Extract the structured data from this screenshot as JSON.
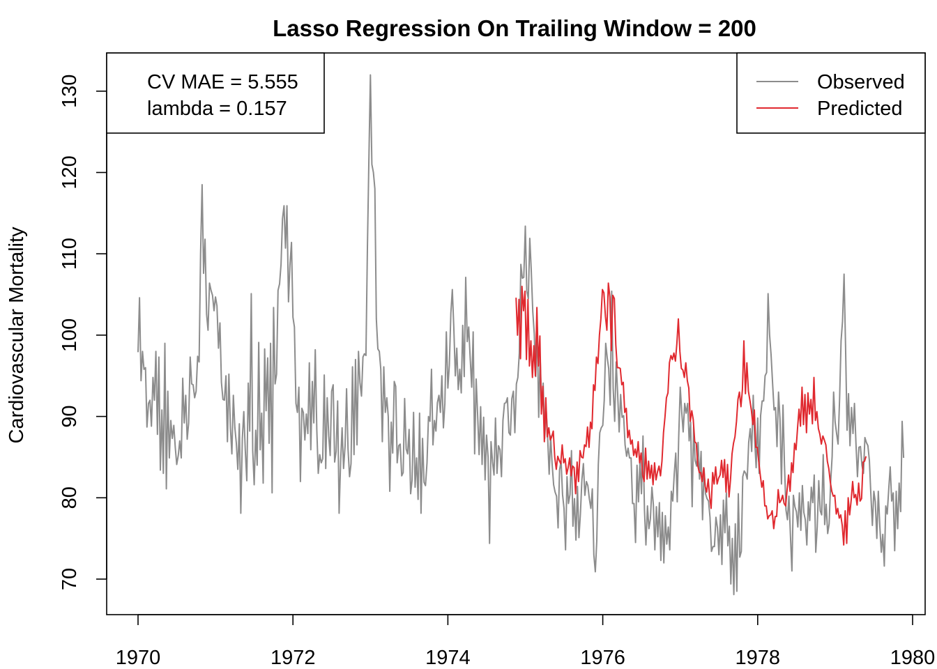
{
  "chart_data": {
    "type": "line",
    "title": "Lasso Regression On Trailing Window = 200",
    "xlabel": "",
    "ylabel": "Cardiovascular Mortality",
    "xlim": [
      1969.6,
      1980.0
    ],
    "ylim": [
      66,
      135
    ],
    "xticks": [
      "1970",
      "1972",
      "1974",
      "1976",
      "1978",
      "1980"
    ],
    "yticks": [
      "70",
      "80",
      "90",
      "100",
      "110",
      "120",
      "130"
    ],
    "grid": false,
    "annotation": {
      "line1": "CV MAE = 5.555",
      "line2": "lambda = 0.157",
      "position": "top-left"
    },
    "legend": {
      "position": "top-right",
      "entries": [
        {
          "label": "Observed",
          "color": "#8c8c8c"
        },
        {
          "label": "Predicted",
          "color": "#e0292f"
        }
      ]
    },
    "series": [
      {
        "name": "Observed",
        "color": "#8c8c8c",
        "x_start": 1970.0,
        "x_step": 0.01923,
        "values": [
          97.9,
          104.6,
          94.4,
          98.0,
          95.8,
          96.0,
          88.7,
          91.6,
          92.0,
          88.8,
          94.8,
          92.0,
          98.0,
          87.8,
          97.3,
          83.4,
          90.8,
          83.0,
          99.0,
          81.1,
          93.1,
          84.9,
          89.5,
          87.3,
          88.9,
          86.2,
          84.1,
          85.2,
          87.0,
          84.9,
          94.7,
          89.2,
          92.6,
          87.2,
          89.2,
          97.3,
          94.0,
          93.9,
          92.3,
          93.1,
          97.4,
          96.7,
          110.0,
          118.5,
          107.6,
          111.8,
          102.6,
          100.6,
          106.4,
          105.5,
          104.9,
          103.0,
          104.7,
          103.6,
          98.4,
          101.5,
          94.2,
          92.1,
          92.0,
          95.0,
          86.9,
          95.2,
          88.6,
          85.4,
          92.6,
          88.6,
          86.7,
          83.5,
          89.1,
          78.1,
          87.3,
          90.6,
          85.9,
          82.1,
          94.1,
          88.2,
          105.1,
          85.8,
          81.6,
          88.3,
          84.0,
          99.1,
          85.9,
          90.4,
          81.8,
          98.3,
          90.7,
          97.2,
          86.7,
          99.0,
          80.6,
          103.4,
          94.0,
          95.2,
          105.5,
          106.3,
          108.7,
          114.3,
          115.9,
          110.7,
          115.9,
          104.1,
          108.6,
          111.4,
          102.2,
          101.0,
          91.6,
          90.5,
          93.6,
          82.0,
          91.0,
          90.5,
          87.1,
          90.3,
          87.9,
          96.6,
          85.9,
          94.3,
          89.2,
          98.2,
          88.4,
          83.0,
          85.3,
          84.3,
          84.8,
          95.1,
          83.6,
          92.3,
          87.6,
          85.2,
          93.1,
          93.9,
          84.4,
          85.7,
          91.9,
          78.1,
          84.5,
          88.6,
          83.6,
          86.4,
          93.4,
          86.0,
          82.6,
          84.2,
          96.1,
          85.3,
          97.0,
          86.5,
          98.0,
          94.2,
          92.5,
          97.3,
          97.7,
          97.5,
          110.7,
          122.0,
          132.0,
          121.0,
          120.0,
          118.0,
          102.0,
          98.3,
          98.0,
          95.8,
          86.9,
          96.1,
          90.5,
          92.3,
          90.0,
          80.8,
          89.3,
          85.5,
          94.3,
          93.7,
          84.3,
          86.4,
          86.6,
          82.7,
          83.1,
          92.2,
          86.0,
          85.4,
          88.4,
          80.5,
          82.2,
          90.5,
          81.3,
          84.9,
          79.8,
          90.4,
          78.1,
          87.3,
          81.9,
          81.5,
          84.3,
          90.0,
          89.4,
          95.8,
          86.5,
          89.5,
          88.2,
          91.7,
          92.6,
          90.5,
          95.0,
          88.6,
          91.6,
          100.4,
          93.5,
          96.3,
          102.7,
          105.6,
          101.0,
          95.0,
          98.4,
          93.3,
          95.8,
          92.9,
          101.2,
          94.9,
          107.1,
          99.2,
          101.0,
          97.2,
          93.6,
          100.4,
          85.4,
          94.6,
          90.2,
          85.3,
          91.2,
          84.1,
          89.9,
          82.2,
          87.7,
          85.0,
          74.4,
          86.9,
          84.4,
          82.8,
          89.8,
          83.0,
          86.4,
          85.9,
          82.6,
          89.5,
          91.6,
          91.7,
          92.3,
          88.0,
          87.7,
          92.2,
          93.1,
          88.0,
          94.0,
          94.8,
          97.8,
          108.7,
          107.0,
          107.1,
          113.4,
          105.4,
          104.5,
          111.9,
          108.0,
          102.9,
          100.2,
          94.9,
          101.0,
          89.9,
          97.3,
          91.0,
          94.1,
          87.3,
          90.9,
          87.5,
          82.9,
          87.6,
          84.2,
          81.6,
          80.7,
          80.2,
          76.3,
          83.4,
          84.5,
          80.4,
          78.7,
          73.6,
          82.6,
          79.3,
          80.4,
          85.8,
          76.5,
          79.9,
          74.8,
          81.4,
          75.1,
          78.0,
          82.3,
          84.2,
          80.3,
          82.0,
          81.5,
          79.9,
          78.7,
          81.1,
          73.0,
          70.9,
          74.7,
          84.1,
          88.0,
          88.6,
          88.9,
          92.0,
          99.0,
          97.2,
          95.9,
          91.4,
          105.4,
          93.5,
          89.4,
          96.7,
          92.9,
          88.1,
          92.7,
          89.9,
          90.1,
          86.5,
          85.1,
          86.1,
          84.9,
          84.9,
          79.3,
          79.3,
          74.5,
          84.0,
          79.5,
          84.6,
          80.5,
          87.6,
          78.5,
          74.2,
          79.0,
          76.2,
          77.4,
          81.3,
          79.1,
          73.6,
          78.9,
          75.2,
          79.4,
          72.3,
          78.2,
          72.0,
          77.8,
          74.3,
          76.4,
          73.6,
          80.8,
          79.6,
          82.9,
          85.5,
          79.5,
          87.4,
          93.6,
          90.6,
          88.1,
          91.6,
          90.4,
          91.6,
          87.0,
          89.3,
          78.9,
          88.7,
          84.6,
          83.9,
          86.8,
          82.3,
          85.7,
          77.3,
          83.6,
          80.5,
          79.9,
          79.6,
          77.6,
          73.4,
          74.0,
          74.0,
          77.6,
          76.3,
          73.0,
          77.9,
          71.8,
          79.7,
          75.7,
          80.6,
          74.1,
          76.5,
          69.4,
          75.0,
          68.1,
          76.8,
          68.5,
          80.5,
          72.7,
          73.4,
          82.6,
          83.3,
          83.0,
          82.3,
          86.8,
          88.5,
          85.7,
          92.6,
          87.1,
          83.7,
          89.8,
          83.0,
          90.1,
          91.9,
          91.9,
          95.0,
          95.4,
          105.1,
          100.0,
          97.6,
          94.2,
          90.8,
          91.1,
          86.3,
          93.0,
          89.7,
          81.7,
          91.4,
          84.1,
          78.5,
          77.3,
          80.2,
          75.3,
          71.0,
          80.3,
          78.9,
          78.3,
          76.4,
          80.6,
          76.0,
          81.5,
          78.2,
          77.3,
          74.2,
          79.5,
          77.2,
          81.3,
          79.4,
          82.8,
          73.3,
          76.4,
          82.1,
          78.4,
          77.9,
          85.3,
          76.7,
          79.2,
          75.6,
          76.8,
          82.0,
          85.1,
          93.0,
          89.3,
          87.9,
          86.6,
          92.2,
          99.3,
          101.7,
          107.5,
          98.8,
          88.3,
          92.8,
          86.4,
          91.1,
          87.9,
          91.6,
          86.6,
          82.6,
          86.2,
          86.3,
          84.0,
          83.0,
          87.4,
          86.8,
          86.4,
          84.6,
          80.5,
          76.6,
          80.8,
          79.5,
          75.0,
          80.8,
          76.5,
          73.3,
          75.5,
          71.6,
          79.0,
          78.0,
          81.1,
          83.8,
          79.6,
          80.6,
          73.5,
          80.8,
          76.2,
          81.8,
          78.3,
          89.4,
          84.9
        ]
      },
      {
        "name": "Predicted",
        "color": "#e0292f",
        "x_start": 1974.88,
        "x_step": 0.01923,
        "values": [
          104.6,
          100.0,
          104.4,
          97.1,
          106.0,
          103.0,
          105.4,
          97.0,
          104.4,
          96.2,
          99.3,
          94.8,
          98.7,
          95.0,
          103.4,
          96.2,
          99.9,
          90.3,
          93.7,
          86.9,
          92.3,
          87.5,
          88.6,
          87.1,
          87.5,
          88.2,
          85.0,
          83.5,
          85.1,
          84.6,
          84.2,
          86.5,
          84.3,
          84.8,
          82.9,
          83.7,
          84.9,
          82.7,
          83.9,
          83.7,
          80.5,
          84.4,
          82.0,
          85.8,
          85.0,
          84.9,
          86.5,
          86.3,
          88.7,
          86.2,
          89.3,
          88.5,
          93.9,
          93.2,
          97.3,
          96.5,
          100.0,
          102.0,
          105.6,
          105.2,
          102.3,
          100.6,
          106.4,
          104.7,
          98.1,
          104.9,
          104.5,
          98.8,
          96.0,
          96.0,
          95.9,
          93.9,
          94.2,
          90.5,
          91.0,
          87.4,
          88.3,
          86.6,
          87.1,
          85.2,
          86.0,
          85.0,
          86.9,
          84.3,
          85.5,
          82.8,
          82.0,
          86.1,
          82.3,
          84.5,
          82.4,
          84.0,
          81.6,
          84.3,
          82.2,
          83.2,
          83.9,
          82.7,
          84.5,
          88.0,
          89.9,
          92.3,
          92.9,
          96.6,
          97.5,
          97.0,
          97.8,
          96.8,
          99.0,
          102.0,
          98.0,
          95.9,
          95.7,
          94.8,
          96.6,
          94.4,
          93.5,
          89.4,
          90.7,
          89.6,
          86.9,
          86.7,
          84.0,
          83.1,
          83.1,
          82.0,
          83.7,
          81.4,
          80.7,
          82.3,
          80.1,
          78.7,
          83.1,
          81.7,
          83.8,
          81.7,
          82.4,
          82.8,
          84.6,
          82.5,
          84.7,
          80.7,
          84.1,
          80.1,
          82.2,
          85.4,
          86.7,
          87.5,
          89.4,
          92.1,
          93.0,
          91.2,
          93.3,
          99.3,
          92.8,
          96.6,
          93.1,
          92.0,
          90.8,
          89.0,
          90.8,
          86.2,
          86.2,
          84.4,
          82.8,
          81.3,
          82.1,
          79.0,
          79.0,
          77.4,
          77.8,
          77.9,
          78.4,
          76.2,
          77.7,
          77.7,
          81.0,
          79.4,
          79.7,
          80.3,
          79.3,
          79.0,
          81.0,
          82.8,
          80.8,
          84.3,
          83.1,
          86.7,
          85.9,
          88.6,
          90.9,
          88.8,
          93.6,
          89.0,
          92.7,
          88.0,
          92.9,
          90.3,
          92.1,
          89.1,
          94.8,
          89.5,
          90.6,
          88.5,
          87.8,
          86.6,
          87.6,
          87.1,
          86.5,
          84.5,
          83.6,
          81.9,
          80.8,
          80.2,
          80.3,
          78.0,
          78.7,
          77.5,
          77.9,
          76.6,
          74.2,
          78.4,
          74.4,
          80.0,
          77.9,
          79.7,
          82.0,
          80.0,
          80.4,
          79.1,
          81.8,
          79.6,
          79.9,
          84.4,
          84.5,
          85.1
        ]
      }
    ]
  }
}
